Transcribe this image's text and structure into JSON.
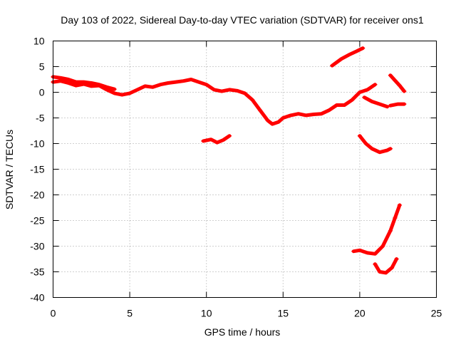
{
  "chart_data": {
    "type": "line",
    "title": "Day 103 of 2022, Sidereal Day-to-day VTEC variation (SDTVAR) for receiver ons1",
    "xlabel": "GPS time / hours",
    "ylabel": "SDTVAR / TECUs",
    "xlim": [
      0,
      25
    ],
    "ylim": [
      -40,
      10
    ],
    "xticks": [
      0,
      5,
      10,
      15,
      20,
      25
    ],
    "yticks": [
      -40,
      -35,
      -30,
      -25,
      -20,
      -15,
      -10,
      -5,
      0,
      5,
      10
    ],
    "grid": true,
    "color": "#ff0000",
    "series": [
      {
        "name": "main",
        "points": [
          [
            0,
            2
          ],
          [
            0.5,
            2.2
          ],
          [
            1,
            1.8
          ],
          [
            1.5,
            1.3
          ],
          [
            2,
            1.6
          ],
          [
            2.5,
            1.2
          ],
          [
            3,
            1.3
          ],
          [
            3.5,
            0.5
          ],
          [
            4,
            -0.2
          ],
          [
            4.5,
            -0.5
          ],
          [
            5,
            -0.2
          ],
          [
            5.5,
            0.5
          ],
          [
            6,
            1.2
          ],
          [
            6.5,
            1.0
          ],
          [
            7,
            1.5
          ],
          [
            7.5,
            1.8
          ],
          [
            8,
            2.0
          ],
          [
            8.5,
            2.2
          ],
          [
            9,
            2.5
          ],
          [
            9.5,
            2.0
          ],
          [
            10,
            1.5
          ],
          [
            10.5,
            0.5
          ],
          [
            11,
            0.2
          ],
          [
            11.5,
            0.5
          ],
          [
            12,
            0.3
          ],
          [
            12.5,
            -0.2
          ],
          [
            13,
            -1.5
          ],
          [
            13.5,
            -3.5
          ],
          [
            14,
            -5.5
          ],
          [
            14.3,
            -6.2
          ],
          [
            14.7,
            -5.8
          ],
          [
            15,
            -5
          ],
          [
            15.5,
            -4.5
          ],
          [
            16,
            -4.2
          ],
          [
            16.5,
            -4.5
          ],
          [
            17,
            -4.3
          ],
          [
            17.5,
            -4.2
          ],
          [
            18,
            -3.5
          ],
          [
            18.5,
            -2.5
          ],
          [
            19,
            -2.5
          ],
          [
            19.5,
            -1.5
          ],
          [
            20,
            0
          ],
          [
            20.5,
            0.5
          ],
          [
            21,
            1.5
          ]
        ]
      },
      {
        "name": "seg-upper-left",
        "points": [
          [
            0,
            3.0
          ],
          [
            0.5,
            2.8
          ],
          [
            1,
            2.5
          ],
          [
            1.5,
            2.0
          ],
          [
            2,
            2.0
          ],
          [
            2.5,
            1.8
          ],
          [
            3,
            1.5
          ],
          [
            3.5,
            1.0
          ],
          [
            4,
            0.6
          ]
        ]
      },
      {
        "name": "seg-dip-10",
        "points": [
          [
            9.8,
            -9.5
          ],
          [
            10.3,
            -9.2
          ],
          [
            10.7,
            -9.8
          ],
          [
            11.1,
            -9.3
          ],
          [
            11.5,
            -8.5
          ]
        ]
      },
      {
        "name": "seg-rise-19",
        "points": [
          [
            18.2,
            5.2
          ],
          [
            18.8,
            6.5
          ],
          [
            19.3,
            7.3
          ],
          [
            19.8,
            8.0
          ],
          [
            20.2,
            8.6
          ]
        ]
      },
      {
        "name": "seg-21-tail",
        "points": [
          [
            20.3,
            -1
          ],
          [
            20.8,
            -1.8
          ],
          [
            21.3,
            -2.3
          ],
          [
            21.8,
            -2.8
          ]
        ]
      },
      {
        "name": "seg-22-pos",
        "points": [
          [
            22.0,
            3.3
          ],
          [
            22.3,
            2.3
          ],
          [
            22.6,
            1.3
          ],
          [
            22.9,
            0.2
          ]
        ]
      },
      {
        "name": "seg-22-neg",
        "points": [
          [
            22.0,
            -2.6
          ],
          [
            22.5,
            -2.3
          ],
          [
            22.9,
            -2.3
          ]
        ]
      },
      {
        "name": "seg-minus10",
        "points": [
          [
            20.0,
            -8.5
          ],
          [
            20.4,
            -10.0
          ],
          [
            20.8,
            -11.0
          ],
          [
            21.3,
            -11.7
          ],
          [
            21.8,
            -11.3
          ],
          [
            22.0,
            -11.0
          ]
        ]
      },
      {
        "name": "seg-minus30",
        "points": [
          [
            19.6,
            -31.0
          ],
          [
            20.0,
            -30.8
          ],
          [
            20.5,
            -31.3
          ],
          [
            21.0,
            -31.5
          ],
          [
            21.5,
            -30.0
          ],
          [
            22.0,
            -27.0
          ],
          [
            22.3,
            -24.5
          ],
          [
            22.6,
            -22.0
          ]
        ]
      },
      {
        "name": "seg-minus35",
        "points": [
          [
            21.0,
            -33.5
          ],
          [
            21.3,
            -35.0
          ],
          [
            21.7,
            -35.2
          ],
          [
            22.1,
            -34.2
          ],
          [
            22.4,
            -32.5
          ]
        ]
      }
    ]
  }
}
